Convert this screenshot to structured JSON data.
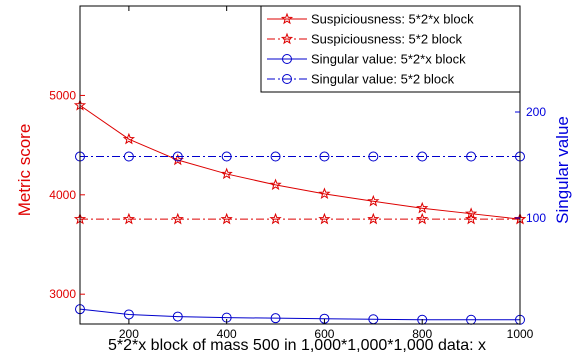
{
  "chart_data": {
    "type": "line",
    "title": "",
    "xlabel": "5*2*x block of mass 500 in 1,000*1,000*1,000 data: x",
    "ylabel_left": "Metric score",
    "ylabel_right": "Singular value",
    "x": [
      100,
      200,
      300,
      400,
      500,
      600,
      700,
      800,
      900,
      1000
    ],
    "xlim": [
      100,
      1000
    ],
    "x_ticks": [
      200,
      400,
      600,
      800,
      1000
    ],
    "ylim_left": [
      2700,
      5900
    ],
    "y_ticks_left": [
      3000,
      4000,
      5000
    ],
    "ylim_right": [
      0,
      300
    ],
    "y_ticks_right": [
      100,
      200
    ],
    "grid": false,
    "legend_position": "top-right",
    "colors": {
      "left_axis": "#e00000",
      "right_axis": "#0000dd",
      "suspiciousness": "#dd0000",
      "singular": "#0000cc"
    },
    "series": [
      {
        "name": "Suspiciousness: 5*2*x block",
        "axis": "left",
        "line": "solid",
        "marker": "star",
        "color": "#dd0000",
        "values": [
          4900,
          4560,
          4350,
          4210,
          4100,
          4010,
          3935,
          3865,
          3810,
          3755
        ]
      },
      {
        "name": "Suspiciousness: 5*2 block",
        "axis": "left",
        "line": "dashdot",
        "marker": "star",
        "color": "#dd0000",
        "values": [
          3755,
          3755,
          3755,
          3755,
          3755,
          3755,
          3755,
          3755,
          3755,
          3755
        ]
      },
      {
        "name": "Singular value: 5*2*x block",
        "axis": "right",
        "line": "solid",
        "marker": "circle",
        "color": "#0000cc",
        "values": [
          14,
          9,
          7,
          6,
          5.5,
          5,
          4.5,
          4,
          4,
          4
        ]
      },
      {
        "name": "Singular value: 5*2 block",
        "axis": "right",
        "line": "dashdot",
        "marker": "circle",
        "color": "#0000cc",
        "values": [
          158,
          158,
          158,
          158,
          158,
          158,
          158,
          158,
          158,
          158
        ]
      }
    ]
  }
}
